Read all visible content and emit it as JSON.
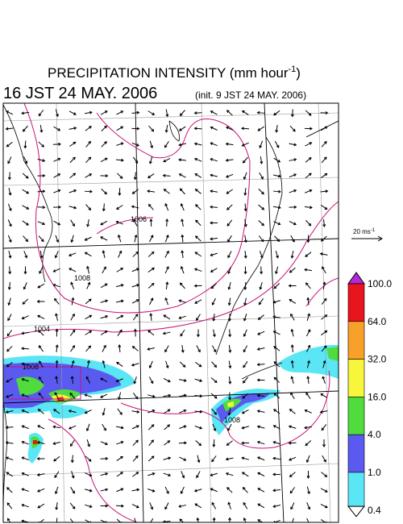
{
  "header": {
    "title": "PRECIPITATION INTENSITY (mm hour",
    "title_exponent": "-1",
    "title_end": ")",
    "time": "16 JST 24 MAY. 2006",
    "init": "(init. 9 JST 24 MAY. 2006)"
  },
  "wind_scale": {
    "label": "20 ms",
    "exponent": "-1"
  },
  "contour_labels": [
    "1006",
    "1008",
    "1004",
    "1008",
    "1008"
  ],
  "colorbar": {
    "levels": [
      {
        "label": "100.0",
        "color": "#e8141e"
      },
      {
        "label": "64.0",
        "color": "#f7a02a"
      },
      {
        "label": "32.0",
        "color": "#f7f53c"
      },
      {
        "label": "16.0",
        "color": "#50dc3c"
      },
      {
        "label": "4.0",
        "color": "#5a5af0"
      },
      {
        "label": "1.0",
        "color": "#5ae6f5"
      },
      {
        "label": "0.4",
        "color": "#ffffff"
      }
    ],
    "top_color": "#b428dc"
  }
}
